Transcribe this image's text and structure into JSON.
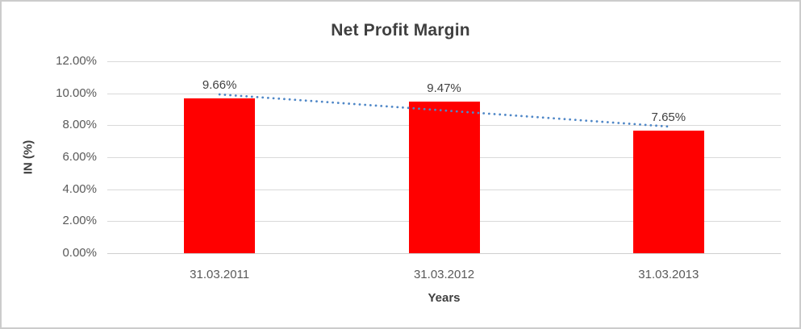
{
  "chart_data": {
    "type": "bar",
    "title": "Net Profit Margin",
    "xlabel": "Years",
    "ylabel": "IN (%)",
    "categories": [
      "31.03.2011",
      "31.03.2012",
      "31.03.2013"
    ],
    "series": [
      {
        "name": "Net Profit Margin",
        "color": "#FF0000",
        "values": [
          9.66,
          9.47,
          7.65
        ]
      }
    ],
    "data_labels": [
      "9.66%",
      "9.47%",
      "7.65%"
    ],
    "y_axis": {
      "range": [
        0,
        12
      ],
      "tick_values": [
        0,
        2,
        4,
        6,
        8,
        10,
        12
      ],
      "tick_labels": [
        "0.00%",
        "2.00%",
        "4.00%",
        "6.00%",
        "8.00%",
        "10.00%",
        "12.00%"
      ]
    },
    "grid": true,
    "legend": "none",
    "trendline": {
      "type": "linear",
      "style": "dotted",
      "color": "#4F87C7",
      "fitted_values": [
        9.93,
        8.93,
        7.92
      ]
    },
    "colors": {
      "bar": "#FF0000",
      "gridline": "#D9D9D9",
      "axis_line": "#CFCFCF",
      "title_text": "#3F3F3F",
      "axis_title_text": "#3F3F3F",
      "tick_text": "#595959",
      "data_label_text": "#404040",
      "frame_border": "#CCCCCC",
      "background": "#FFFFFF"
    }
  }
}
